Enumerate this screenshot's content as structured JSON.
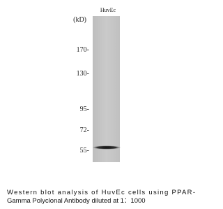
{
  "blot": {
    "lane_label": "HuvEc",
    "unit_label": "(kD)",
    "markers": [
      "170-",
      "130-",
      "95-",
      "72-",
      "55-"
    ]
  },
  "caption": {
    "lines": [
      "Western blot analysis of HuvEc cells using PPAR-",
      "Gamma Polyclonal Antibody diluted at 1：1000"
    ]
  }
}
